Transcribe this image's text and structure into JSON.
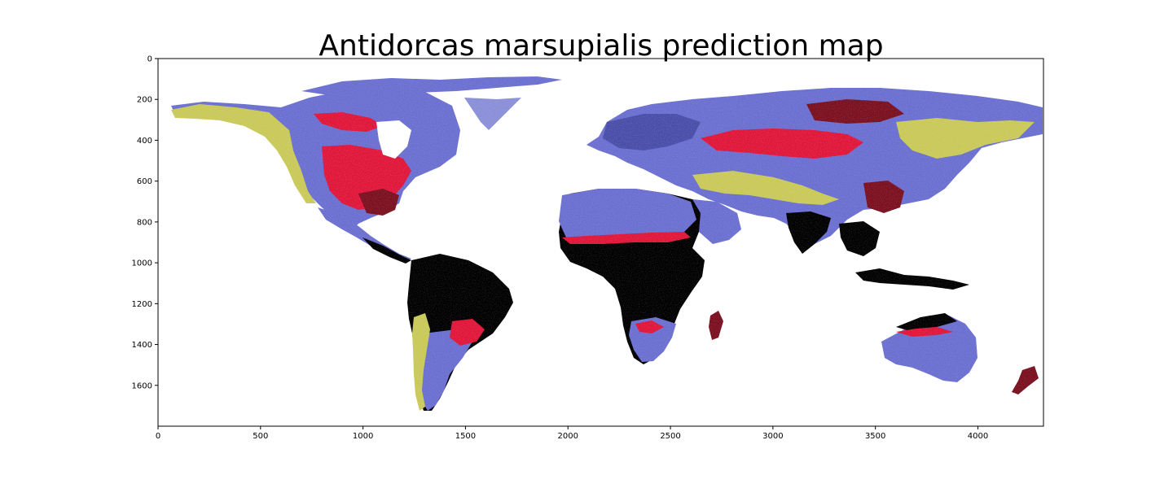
{
  "figure": {
    "title": "Antidorcas marsupialis prediction map"
  },
  "chart_data": {
    "type": "heatmap",
    "title": "Antidorcas marsupialis prediction map",
    "xlabel": "",
    "ylabel": "",
    "xlim": [
      0,
      4320
    ],
    "ylim": [
      1800,
      0
    ],
    "x_ticks": [
      0,
      500,
      1000,
      1500,
      2000,
      2500,
      3000,
      3500,
      4000
    ],
    "y_ticks": [
      0,
      200,
      400,
      600,
      800,
      1000,
      1200,
      1400,
      1600
    ],
    "x_tick_labels": [
      "0",
      "500",
      "1000",
      "1500",
      "2000",
      "2500",
      "3000",
      "3500",
      "4000"
    ],
    "y_tick_labels": [
      "0",
      "200",
      "400",
      "600",
      "800",
      "1000",
      "1200",
      "1400",
      "1600"
    ],
    "grid": false,
    "colors": {
      "very_low": "#000000",
      "low": "#7a1020",
      "mid_low": "#e0173a",
      "mid": "#6b6fd0",
      "high": "#c9c95a",
      "very_high": "#fffbe6",
      "no_data": "#ffffff"
    }
  }
}
